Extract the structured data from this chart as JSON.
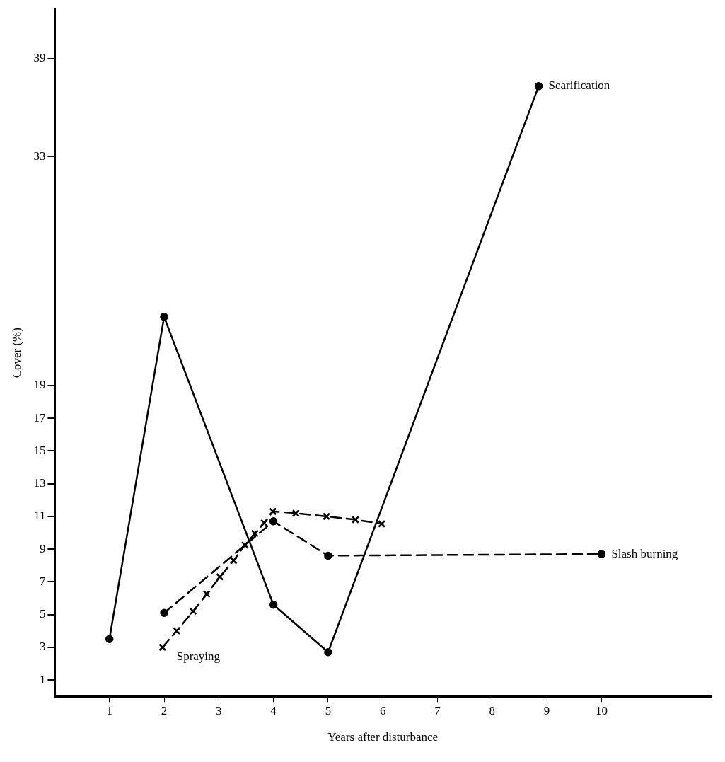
{
  "chart_data": {
    "type": "line",
    "xlabel": "Years after disturbance",
    "ylabel": "Cover (%)",
    "xlim": [
      0,
      12
    ],
    "xticks": [
      1,
      2,
      3,
      4,
      5,
      6,
      7,
      8,
      9,
      10
    ],
    "ylim": [
      0,
      42
    ],
    "yticks": [
      1,
      3,
      5,
      7,
      9,
      11,
      13,
      15,
      17,
      19,
      33,
      39
    ],
    "grid": false,
    "legend": false,
    "series": [
      {
        "name": "Scarification",
        "color": "#000000",
        "marker": "circle",
        "line_style": "solid",
        "x": [
          1,
          2,
          4,
          5,
          8.85
        ],
        "values": [
          3.5,
          23.2,
          5.6,
          2.7,
          37.3
        ]
      },
      {
        "name": "Slash burning",
        "color": "#000000",
        "marker": "circle",
        "line_style": "dashed",
        "x": [
          2,
          4,
          5,
          10
        ],
        "values": [
          5.1,
          10.7,
          8.6,
          8.7
        ]
      },
      {
        "name": "Spraying",
        "color": "#000000",
        "marker": "cross",
        "line_style": "dashed",
        "x": [
          1.97,
          2.23,
          2.53,
          2.78,
          3.02,
          3.27,
          3.48,
          3.66,
          3.83,
          3.99,
          4.41,
          4.97,
          5.5,
          5.98
        ],
        "values": [
          3.0,
          4.0,
          5.2,
          6.25,
          7.3,
          8.3,
          9.25,
          9.95,
          10.6,
          11.3,
          11.2,
          11.0,
          10.8,
          10.55
        ]
      }
    ]
  }
}
